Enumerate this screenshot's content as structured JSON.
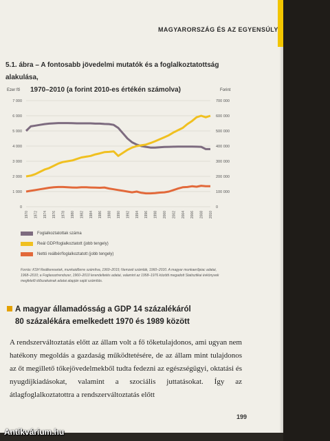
{
  "running_head": "MAGYARORSZÁG ÉS AZ EGYENSÚLY",
  "figure": {
    "title_line1": "5.1. ábra – A fontosabb jövedelmi mutatók és a foglalkoztatottság alakulása,",
    "title_line2": "1970–2010 (a forint 2010-es értékén számolva)"
  },
  "chart_data": {
    "type": "line",
    "left_axis_label": "Ezer fő",
    "right_axis_label": "Forint",
    "left_ticks": [
      "7 000",
      "6 000",
      "5 000",
      "4 000",
      "3 000",
      "2 000",
      "1 000",
      "0"
    ],
    "right_ticks": [
      "700 000",
      "600 000",
      "500 000",
      "400 000",
      "300 000",
      "200 000",
      "100 000",
      "0"
    ],
    "ylim_left": [
      0,
      7000
    ],
    "ylim_right": [
      0,
      700000
    ],
    "x": [
      1970,
      1971,
      1972,
      1973,
      1974,
      1975,
      1976,
      1977,
      1978,
      1979,
      1980,
      1981,
      1982,
      1983,
      1984,
      1985,
      1986,
      1987,
      1988,
      1989,
      1990,
      1991,
      1992,
      1993,
      1994,
      1995,
      1996,
      1997,
      1998,
      1999,
      2000,
      2001,
      2002,
      2003,
      2004,
      2005,
      2006,
      2007,
      2008,
      2009,
      2010
    ],
    "x_tick_labels": [
      "1970",
      "1972",
      "1974",
      "1976",
      "1978",
      "1980",
      "1982",
      "1984",
      "1986",
      "1988",
      "1990",
      "1992",
      "1994",
      "1996",
      "1998",
      "2000",
      "2002",
      "2004",
      "2006",
      "2008",
      "2010"
    ],
    "series": [
      {
        "name": "Foglalkoztatottak száma",
        "color": "#7d6b7f",
        "axis": "left",
        "values": [
          5000,
          5300,
          5350,
          5400,
          5450,
          5480,
          5500,
          5520,
          5520,
          5520,
          5510,
          5500,
          5500,
          5500,
          5500,
          5480,
          5480,
          5460,
          5450,
          5400,
          5200,
          4850,
          4500,
          4250,
          4100,
          4000,
          3950,
          3900,
          3900,
          3920,
          3940,
          3950,
          3960,
          3970,
          3970,
          3970,
          3970,
          3960,
          3950,
          3800,
          3800
        ]
      },
      {
        "name": "Reál GDP/foglalkoztatott (jobb tengely)",
        "color": "#f0c020",
        "axis": "right",
        "values": [
          200000,
          205000,
          215000,
          230000,
          245000,
          255000,
          270000,
          285000,
          295000,
          300000,
          305000,
          315000,
          325000,
          330000,
          335000,
          345000,
          352000,
          360000,
          362000,
          365000,
          335000,
          355000,
          375000,
          390000,
          400000,
          405000,
          410000,
          420000,
          432000,
          445000,
          458000,
          472000,
          490000,
          505000,
          520000,
          545000,
          565000,
          590000,
          600000,
          590000,
          600000
        ]
      },
      {
        "name": "Nettó reálbér/foglalkoztatott (jobb tengely)",
        "color": "#e2693a",
        "axis": "right",
        "values": [
          100000,
          105000,
          110000,
          115000,
          120000,
          125000,
          128000,
          130000,
          130000,
          128000,
          127000,
          126000,
          128000,
          128000,
          127000,
          126000,
          125000,
          127000,
          120000,
          115000,
          110000,
          105000,
          100000,
          95000,
          100000,
          92000,
          88000,
          88000,
          90000,
          93000,
          95000,
          100000,
          110000,
          120000,
          128000,
          130000,
          135000,
          132000,
          138000,
          135000,
          135000
        ]
      }
    ]
  },
  "source_text": "Forrás: KSH Reálkeresetek, munkaidőerre számítva, 1960–2015; Nemzeti számlák, 1960–2010. A magyar munkaerőpiac adatai, 1968–2010; a Foglasoztrendszer, 1960–2010 lerendeltetés adatai, valamint az 1958–1976 közötti megadott Statisztikai évkönyvek megfelelő időszakainak adatai alapján saját számítás.",
  "section_heading_line1": "A magyar államadósság a GDP 14 százalékáról",
  "section_heading_line2": "80 százalékára emelkedett 1970 és 1989 között",
  "body_paragraph": "A rendszerváltoztatás előtt az állam volt a fő tőketulajdonos, ami ugyan nem hatékony megoldás a gazdaság működtetésére, de az állam mint tulajdonos az őt megillető tőkejövedelmekből tudta fedezni az egészségügyi, oktatási és nyugdíjkiadásokat, valamint a szociális juttatásokat. Így az átlagfoglalkoztatottra a rendszerváltoztatás előtt",
  "page_number": "199",
  "watermark": "Antikvárium.hu"
}
